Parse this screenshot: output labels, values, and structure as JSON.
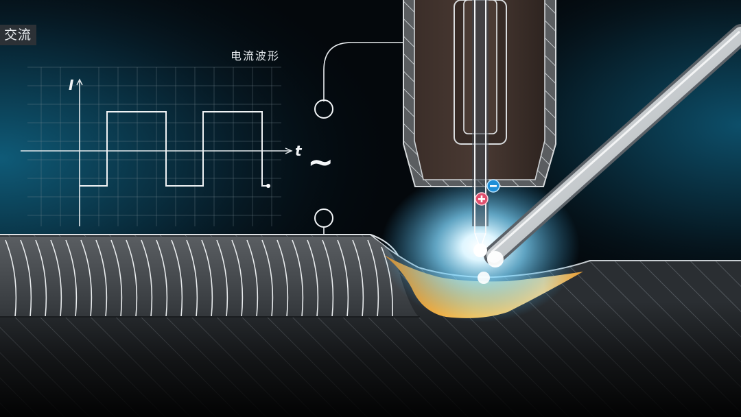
{
  "mode_label": "交流",
  "waveform": {
    "title": "电流波形",
    "y_axis_label": "I",
    "x_axis_label": "t",
    "type": "square-wave"
  },
  "polarity_symbol": "~",
  "electrode_polarity": {
    "positive_icon": "plus-charge-icon",
    "negative_icon": "minus-charge-icon"
  },
  "colors": {
    "background": "#04080c",
    "glow": "#7fd8ff",
    "molten_pool": "#ffb23a",
    "teal_edge": "#0d4f6a"
  }
}
